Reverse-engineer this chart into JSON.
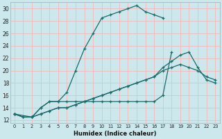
{
  "xlabel": "Humidex (Indice chaleur)",
  "bg_color": "#cce8ec",
  "grid_color": "#f5b8b8",
  "line_color": "#1a6b6b",
  "xlim": [
    -0.5,
    23.5
  ],
  "ylim": [
    11.5,
    31
  ],
  "xticks": [
    0,
    1,
    2,
    3,
    4,
    5,
    6,
    7,
    8,
    9,
    10,
    11,
    12,
    13,
    14,
    15,
    16,
    17,
    18,
    19,
    20,
    21,
    22,
    23
  ],
  "yticks": [
    12,
    14,
    16,
    18,
    20,
    22,
    24,
    26,
    28,
    30
  ],
  "series": [
    {
      "x": [
        0,
        1,
        2,
        3,
        4,
        5,
        6,
        7,
        8,
        9,
        10,
        11,
        12,
        13,
        14,
        15,
        16,
        17
      ],
      "y": [
        13,
        12.5,
        12.5,
        14,
        15,
        15,
        16.5,
        20,
        23.5,
        26,
        28.5,
        29,
        29.5,
        30,
        30.5,
        29.5,
        29,
        28.5
      ]
    },
    {
      "x": [
        0,
        1,
        2,
        3,
        4,
        5,
        6,
        7,
        8,
        9,
        10,
        11,
        12,
        13,
        14,
        15,
        16,
        17,
        18,
        19,
        20,
        21,
        22,
        23
      ],
      "y": [
        13,
        12.5,
        12.5,
        13,
        13.5,
        14,
        14,
        14.5,
        15,
        15.5,
        16,
        16.5,
        17,
        17.5,
        18,
        18.5,
        19,
        20.5,
        21.5,
        22.5,
        23,
        20.5,
        18.5,
        18
      ]
    },
    {
      "x": [
        0,
        1,
        2,
        3,
        4,
        5,
        6,
        7,
        8,
        9,
        10,
        11,
        12,
        13,
        14,
        15,
        16,
        17,
        18,
        19,
        20,
        21,
        22,
        23
      ],
      "y": [
        13,
        12.5,
        12.5,
        13,
        13.5,
        14,
        14,
        14.5,
        15,
        15.5,
        16,
        16.5,
        17,
        17.5,
        18,
        18.5,
        19,
        20,
        20.5,
        21,
        20.5,
        20,
        19,
        18.5
      ]
    },
    {
      "x": [
        0,
        2,
        3,
        4,
        5,
        6,
        7,
        8,
        9,
        10,
        11,
        12,
        13,
        14,
        15,
        16,
        17,
        18
      ],
      "y": [
        13,
        12.5,
        14,
        15,
        15,
        15,
        15,
        15,
        15,
        15,
        15,
        15,
        15,
        15,
        15,
        15,
        16,
        23
      ]
    }
  ]
}
